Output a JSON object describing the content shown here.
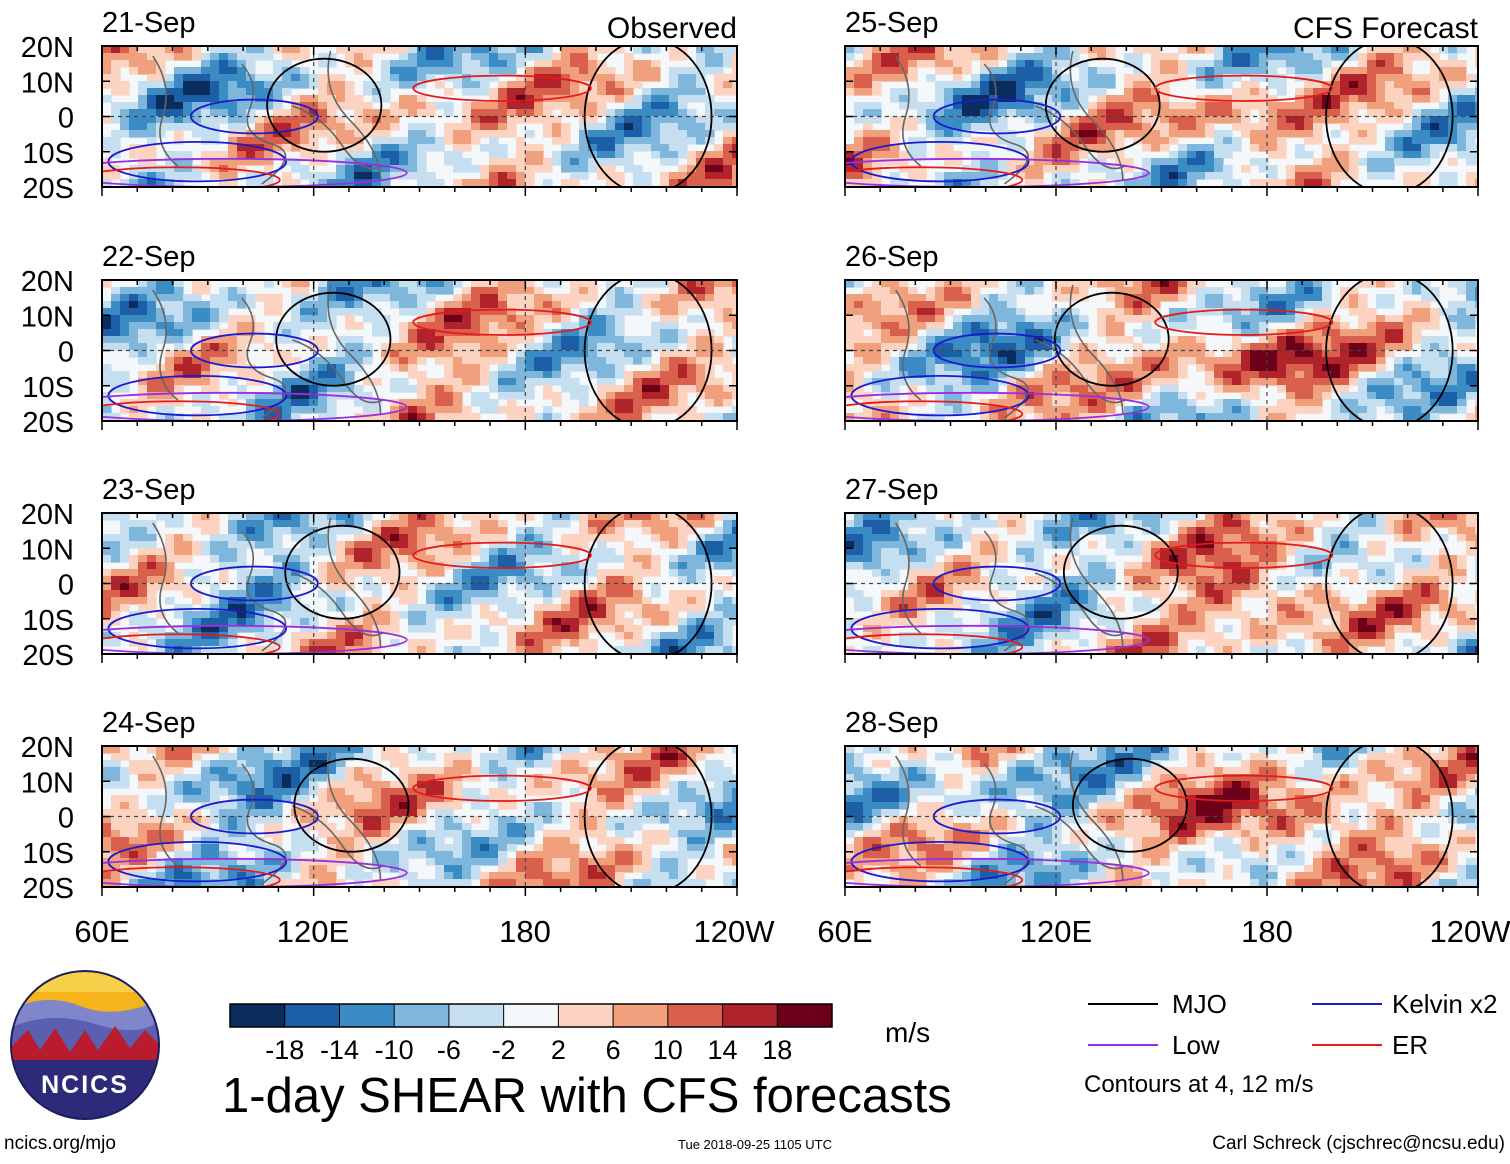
{
  "chart_data": {
    "type": "heatmap",
    "title": "1-day SHEAR with CFS forecasts",
    "units": "m/s",
    "x_ticks": [
      "60E",
      "120E",
      "180",
      "120W"
    ],
    "y_ticks": [
      "20N",
      "10N",
      "0",
      "10S",
      "20S"
    ],
    "x_range_deg_lon": [
      60,
      240
    ],
    "y_range_deg_lat": [
      -20,
      20
    ],
    "columns": [
      {
        "label": "Observed",
        "panels": [
          {
            "date": "21-Sep",
            "seed": 3,
            "bias": 0.2,
            "shift": 0
          },
          {
            "date": "22-Sep",
            "seed": 7,
            "bias": 0.2,
            "shift": 10
          },
          {
            "date": "23-Sep",
            "seed": 11,
            "bias": 0.1,
            "shift": 20
          },
          {
            "date": "24-Sep",
            "seed": 17,
            "bias": 0.2,
            "shift": 30
          }
        ]
      },
      {
        "label": "CFS Forecast",
        "panels": [
          {
            "date": "25-Sep",
            "seed": 23,
            "bias": 0.4,
            "shift": 40
          },
          {
            "date": "26-Sep",
            "seed": 29,
            "bias": 0.6,
            "shift": 50
          },
          {
            "date": "27-Sep",
            "seed": 31,
            "bias": 0.7,
            "shift": 60
          },
          {
            "date": "28-Sep",
            "seed": 37,
            "bias": 0.8,
            "shift": 70
          }
        ]
      }
    ],
    "colorbar": {
      "labels": [
        "-18",
        "-14",
        "-10",
        "-6",
        "-2",
        "2",
        "6",
        "10",
        "14",
        "18"
      ],
      "colors": [
        "#0b2d5e",
        "#1d5fa6",
        "#3b8cc4",
        "#7fb7dc",
        "#c6dff0",
        "#f5f8fb",
        "#fbd3c0",
        "#f0a07d",
        "#d8604d",
        "#b0232a",
        "#6b0018"
      ]
    },
    "legend": [
      {
        "label": "MJO",
        "color": "#000000"
      },
      {
        "label": "Kelvin x2",
        "color": "#1a1ad0"
      },
      {
        "label": "Low",
        "color": "#9a2fe0"
      },
      {
        "label": "ER",
        "color": "#e41a1c"
      }
    ],
    "contour_note": "Contours at 4, 12 m/s"
  },
  "logo": {
    "text": "NCICS"
  },
  "footer": {
    "url": "ncics.org/mjo",
    "timestamp": "Tue 2018-09-25 1105 UTC",
    "author": "Carl Schreck (cjschrec@ncsu.edu)"
  }
}
